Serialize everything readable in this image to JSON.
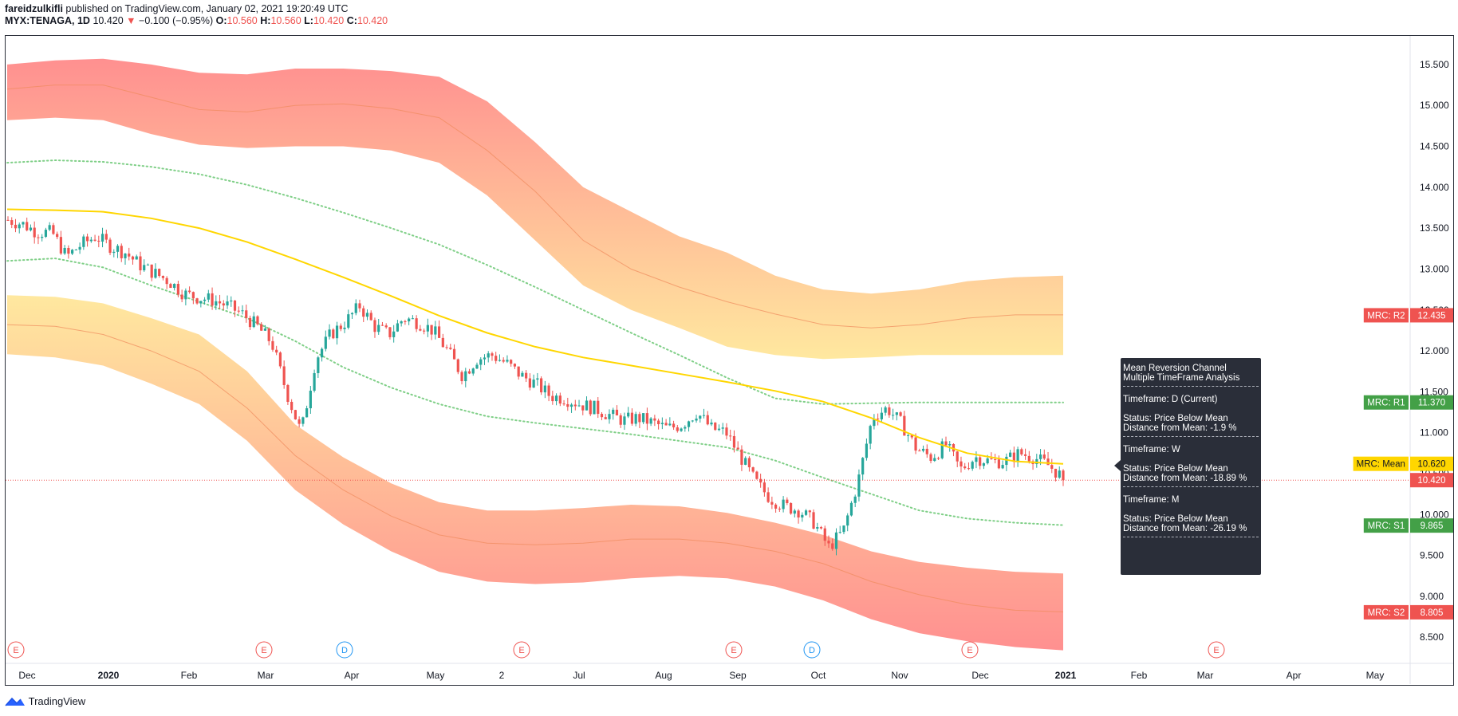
{
  "header": {
    "author": "fareidzulkifli",
    "published": " published on TradingView.com, January 02, 2021 19:20:49 UTC",
    "symbol": "MYX:TENAGA, 1D",
    "last": "10.420",
    "change": "−0.100 (−0.95%)",
    "o_label": "O:",
    "o": "10.560",
    "h_label": "H:",
    "h": "10.560",
    "l_label": "L:",
    "l": "10.420",
    "c_label": "C:",
    "c": "10.420"
  },
  "tooltip": {
    "title1": "Mean Reversion Channel",
    "title2": "Multiple TimeFrame Analysis",
    "blocks": [
      {
        "tf": "Timeframe: D (Current)",
        "status": "Status: Price Below Mean",
        "dist": "Distance from Mean: -1.9 %"
      },
      {
        "tf": "Timeframe: W",
        "status": "Status: Price Below Mean",
        "dist": "Distance from Mean: -18.89 %"
      },
      {
        "tf": "Timeframe: M",
        "status": "Status: Price Below Mean",
        "dist": "Distance from Mean: -26.19 %"
      }
    ]
  },
  "footer": {
    "brand": "TradingView"
  },
  "colors": {
    "up": "#26a69a",
    "down": "#ef5350",
    "mean": "#ffd600",
    "dots": "#7fcf87",
    "band_outer": "#ff8a8a",
    "band_inner": "#ffe79a",
    "r1": "#43a047",
    "mean_tag": "#ffd600",
    "price_tag": "#ef5350"
  },
  "chart_data": {
    "type": "candlestick",
    "title": "",
    "ylim": [
      8.2,
      15.85
    ],
    "y_ticks": [
      "8.500",
      "9.000",
      "9.500",
      "10.000",
      "10.500",
      "11.000",
      "11.500",
      "12.000",
      "12.500",
      "13.000",
      "13.500",
      "14.000",
      "14.500",
      "15.000",
      "15.500"
    ],
    "x_ticks": [
      "Dec",
      "2020",
      "Feb",
      "Mar",
      "Apr",
      "May",
      "2",
      "Jul",
      "Aug",
      "Sep",
      "Oct",
      "Nov",
      "Dec",
      "2021",
      "Feb",
      "Mar",
      "Apr",
      "May"
    ],
    "levels": [
      {
        "name": "MRC: R2",
        "value": "12.435",
        "color": "#ef5350",
        "text": "#ffffff"
      },
      {
        "name": "MRC: R1",
        "value": "11.370",
        "color": "#43a047",
        "text": "#ffffff"
      },
      {
        "name": "MRC: Mean",
        "value": "10.620",
        "color": "#ffd600",
        "text": "#131722"
      },
      {
        "name": "",
        "value": "10.420",
        "color": "#ef5350",
        "text": "#ffffff"
      },
      {
        "name": "MRC: S1",
        "value": "9.865",
        "color": "#43a047",
        "text": "#ffffff"
      },
      {
        "name": "MRC: S2",
        "value": "8.805",
        "color": "#ef5350",
        "text": "#ffffff"
      }
    ],
    "last_price": 10.42,
    "mean_line": [
      13.73,
      13.72,
      13.7,
      13.62,
      13.5,
      13.33,
      13.12,
      12.9,
      12.67,
      12.43,
      12.22,
      12.05,
      11.92,
      11.82,
      11.72,
      11.62,
      11.51,
      11.38,
      11.18,
      10.94,
      10.75,
      10.65,
      10.62
    ],
    "r1_line": [
      14.3,
      14.33,
      14.31,
      14.25,
      14.16,
      14.03,
      13.87,
      13.69,
      13.5,
      13.3,
      13.05,
      12.78,
      12.5,
      12.22,
      11.95,
      11.67,
      11.42,
      11.35,
      11.36,
      11.37,
      11.37,
      11.37,
      11.37
    ],
    "s1_line": [
      13.1,
      13.13,
      13.02,
      12.8,
      12.6,
      12.4,
      12.12,
      11.8,
      11.55,
      11.35,
      11.2,
      11.12,
      11.05,
      10.98,
      10.9,
      10.82,
      10.66,
      10.45,
      10.25,
      10.05,
      9.95,
      9.9,
      9.87
    ],
    "upper_band_outer": [
      15.5,
      15.55,
      15.57,
      15.5,
      15.4,
      15.38,
      15.45,
      15.45,
      15.42,
      15.35,
      15.05,
      14.55,
      14.0,
      13.7,
      13.4,
      13.2,
      12.92,
      12.75,
      12.7,
      12.75,
      12.85,
      12.9,
      12.92
    ],
    "upper_band_center": [
      15.2,
      15.25,
      15.25,
      15.1,
      14.95,
      14.92,
      15.0,
      15.02,
      14.96,
      14.85,
      14.45,
      13.95,
      13.35,
      13.0,
      12.78,
      12.6,
      12.45,
      12.32,
      12.28,
      12.32,
      12.4,
      12.44,
      12.44
    ],
    "upper_band_inner": [
      14.82,
      14.85,
      14.82,
      14.65,
      14.52,
      14.48,
      14.5,
      14.5,
      14.45,
      14.3,
      13.9,
      13.35,
      12.8,
      12.5,
      12.28,
      12.05,
      11.95,
      11.9,
      11.92,
      11.95,
      11.95,
      11.95,
      11.95
    ],
    "lower_band_inner": [
      12.68,
      12.66,
      12.58,
      12.4,
      12.2,
      11.75,
      11.1,
      10.7,
      10.38,
      10.15,
      10.05,
      10.05,
      10.08,
      10.12,
      10.1,
      10.02,
      9.9,
      9.75,
      9.55,
      9.42,
      9.35,
      9.3,
      9.28
    ],
    "lower_band_center": [
      12.32,
      12.3,
      12.2,
      12.0,
      11.75,
      11.3,
      10.72,
      10.3,
      9.98,
      9.75,
      9.65,
      9.63,
      9.65,
      9.7,
      9.7,
      9.65,
      9.55,
      9.4,
      9.18,
      9.02,
      8.9,
      8.83,
      8.81
    ],
    "lower_band_outer": [
      11.96,
      11.92,
      11.82,
      11.6,
      11.35,
      10.9,
      10.3,
      9.88,
      9.55,
      9.3,
      9.18,
      9.15,
      9.17,
      9.22,
      9.25,
      9.22,
      9.12,
      8.95,
      8.72,
      8.55,
      8.45,
      8.38,
      8.34
    ],
    "price_path": [
      13.6,
      13.55,
      13.45,
      13.45,
      13.15,
      13.3,
      13.4,
      13.28,
      13.2,
      13.05,
      12.95,
      12.85,
      12.7,
      12.65,
      12.62,
      12.55,
      12.45,
      12.3,
      12.1,
      11.5,
      11.0,
      11.9,
      12.2,
      12.35,
      12.55,
      12.3,
      12.2,
      12.4,
      12.35,
      12.25,
      12.0,
      11.7,
      11.9,
      11.95,
      11.85,
      11.7,
      11.6,
      11.45,
      11.42,
      11.35,
      11.3,
      11.22,
      11.15,
      11.18,
      11.12,
      11.05,
      11.1,
      11.25,
      11.05,
      11.0,
      10.7,
      10.4,
      10.2,
      10.1,
      10.05,
      9.9,
      9.6,
      9.8,
      10.4,
      11.2,
      11.3,
      11.1,
      10.8,
      10.7,
      10.85,
      10.55,
      10.7,
      10.65,
      10.65,
      10.75,
      10.7,
      10.6,
      10.45
    ]
  }
}
